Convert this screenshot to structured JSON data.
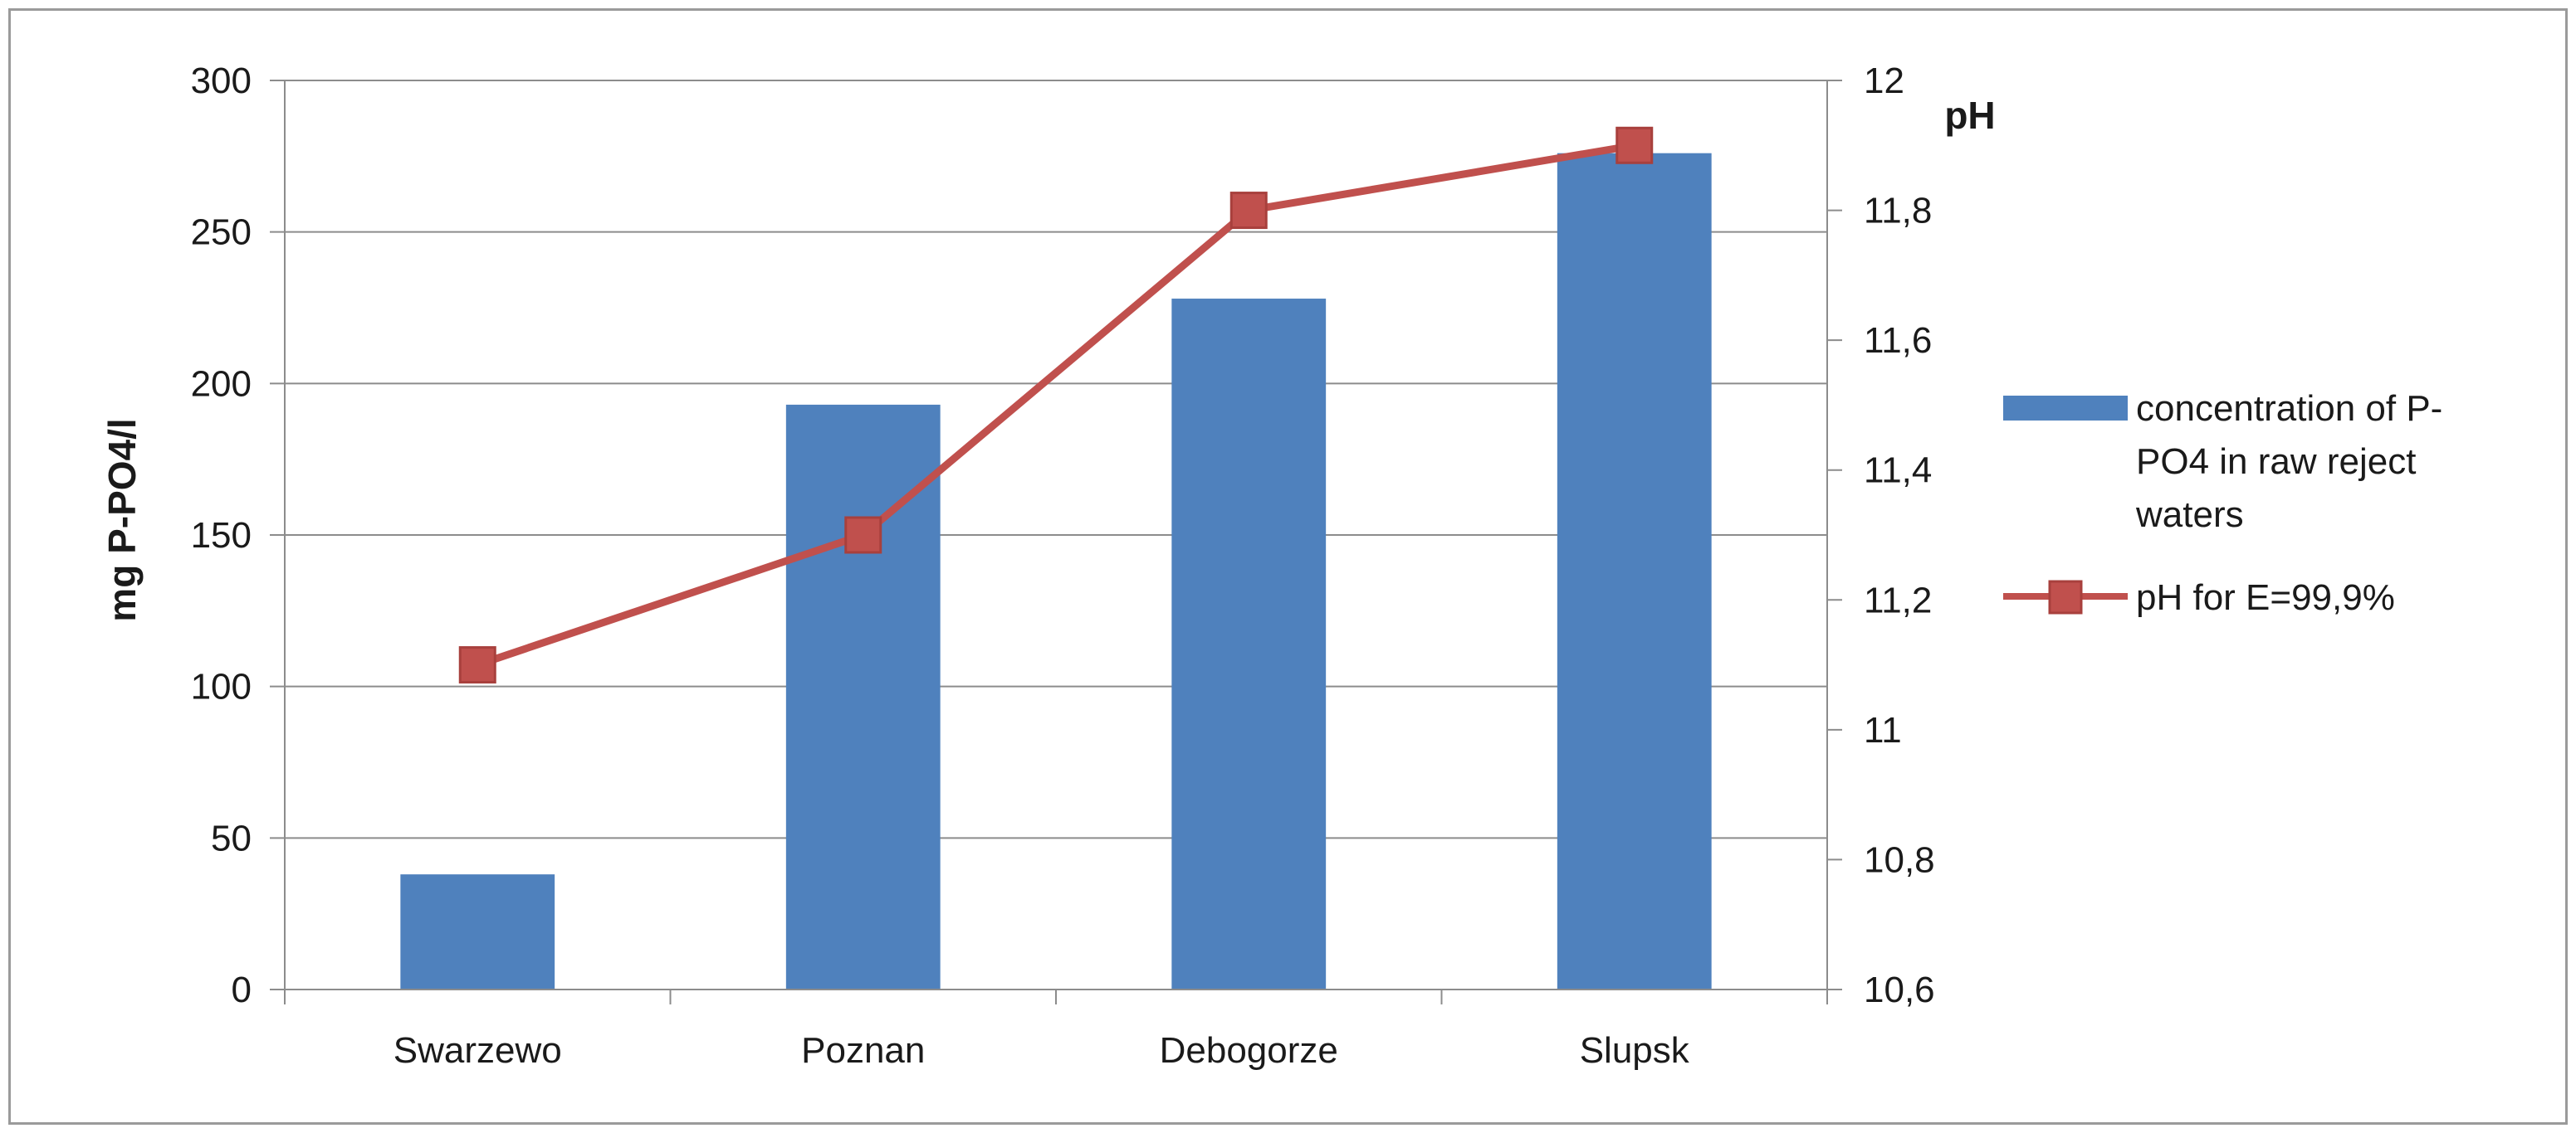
{
  "chart_data": {
    "type": "bar",
    "categories": [
      "Swarzewo",
      "Poznan",
      "Debogorze",
      "Slupsk"
    ],
    "series": [
      {
        "name": "concentration of P-PO4 in raw reject waters",
        "type": "bar",
        "axis": "left",
        "color": "#4F81BD",
        "values": [
          38,
          193,
          228,
          276
        ]
      },
      {
        "name": "pH for E=99,9%",
        "type": "line",
        "axis": "right",
        "color": "#C0504D",
        "marker": "square",
        "values": [
          11.1,
          11.3,
          11.8,
          11.9
        ]
      }
    ],
    "ylabel": "mg P-PO4/l",
    "y2label": "pH",
    "ylim": [
      0,
      300
    ],
    "y2lim": [
      10.6,
      12
    ],
    "yticks": [
      "0",
      "50",
      "100",
      "150",
      "200",
      "250",
      "300"
    ],
    "y2ticks": [
      "10,6",
      "10,8",
      "11",
      "11,2",
      "11,4",
      "11,6",
      "11,8",
      "12"
    ],
    "grid": true,
    "legend_position": "right"
  },
  "legend": {
    "bar_label_lines": [
      "concentration of P-",
      "PO4 in raw reject",
      "waters"
    ],
    "line_label": "pH for E=99,9%"
  }
}
